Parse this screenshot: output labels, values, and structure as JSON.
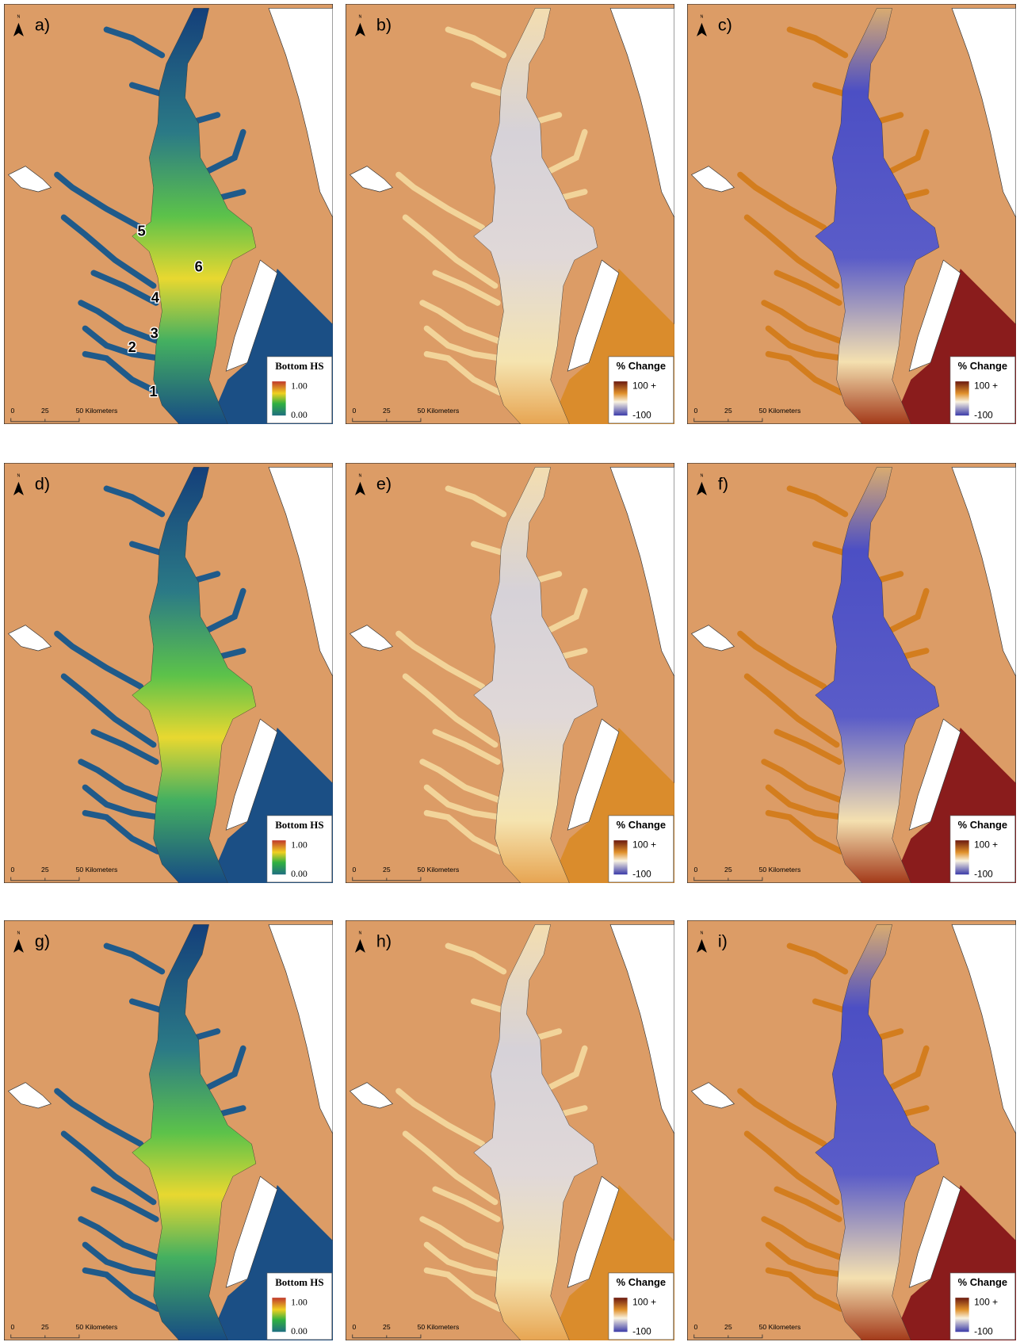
{
  "panels": [
    {
      "label": "a)",
      "legend": {
        "title": "Bottom HS",
        "high": "1.00",
        "low": "0.00"
      },
      "sites": [
        "1",
        "2",
        "3",
        "4",
        "5",
        "6"
      ]
    },
    {
      "label": "b)",
      "legend": {
        "title": "% Change",
        "high": "100 +",
        "low": "-100"
      }
    },
    {
      "label": "c)",
      "legend": {
        "title": "% Change",
        "high": "100 +",
        "low": "-100"
      }
    },
    {
      "label": "d)",
      "legend": {
        "title": "Bottom HS",
        "high": "1.00",
        "low": "0.00"
      }
    },
    {
      "label": "e)",
      "legend": {
        "title": "% Change",
        "high": "100 +",
        "low": "-100"
      }
    },
    {
      "label": "f)",
      "legend": {
        "title": "% Change",
        "high": "100 +",
        "low": "-100"
      }
    },
    {
      "label": "g)",
      "legend": {
        "title": "Bottom HS",
        "high": "1.00",
        "low": "0.00"
      }
    },
    {
      "label": "h)",
      "legend": {
        "title": "% Change",
        "high": "100 +",
        "low": "-100"
      }
    },
    {
      "label": "i)",
      "legend": {
        "title": "% Change",
        "high": "100 +",
        "low": "-100"
      }
    }
  ],
  "north": "N",
  "scale_bar": [
    "0",
    "25",
    "50 Kilometers"
  ]
}
